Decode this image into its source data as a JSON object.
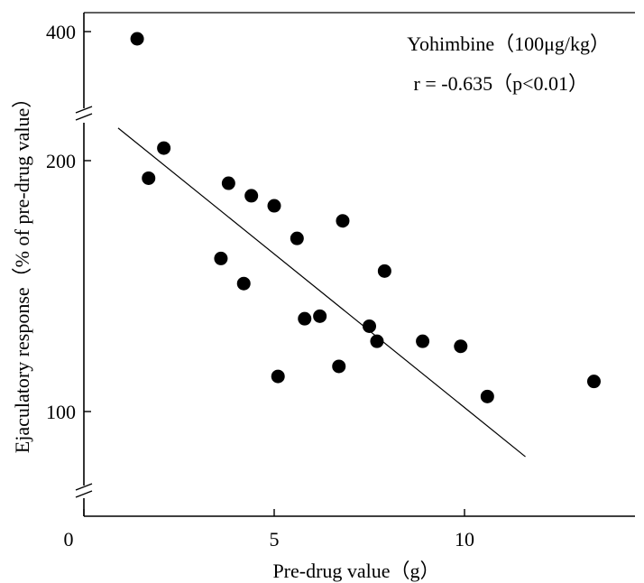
{
  "chart_data": {
    "type": "scatter",
    "xlabel": "Pre-drug value（g）",
    "ylabel": "Ejaculatory response（% of pre-drug value）",
    "annotations": [
      "Yohimbine（100μg/kg）",
      "r = -0.635（p<0.01）"
    ],
    "x_ticks": [
      0,
      5,
      10
    ],
    "x_tick_labels": [
      "0",
      "5",
      "10"
    ],
    "y_ticks": [
      100,
      200,
      400
    ],
    "y_tick_labels": [
      "100",
      "200",
      "400"
    ],
    "xlim": [
      0,
      14.5
    ],
    "y_axis_break": true,
    "grid": false,
    "points": [
      {
        "x": 1.4,
        "y": 392
      },
      {
        "x": 2.1,
        "y": 205
      },
      {
        "x": 1.7,
        "y": 193
      },
      {
        "x": 3.8,
        "y": 191
      },
      {
        "x": 4.4,
        "y": 186
      },
      {
        "x": 5.0,
        "y": 182
      },
      {
        "x": 6.8,
        "y": 176
      },
      {
        "x": 5.6,
        "y": 169
      },
      {
        "x": 3.6,
        "y": 161
      },
      {
        "x": 7.9,
        "y": 156
      },
      {
        "x": 4.2,
        "y": 151
      },
      {
        "x": 5.8,
        "y": 137
      },
      {
        "x": 6.2,
        "y": 138
      },
      {
        "x": 7.5,
        "y": 134
      },
      {
        "x": 7.7,
        "y": 128
      },
      {
        "x": 8.9,
        "y": 128
      },
      {
        "x": 9.9,
        "y": 126
      },
      {
        "x": 6.7,
        "y": 118
      },
      {
        "x": 5.1,
        "y": 114
      },
      {
        "x": 13.4,
        "y": 112
      },
      {
        "x": 10.6,
        "y": 106
      }
    ],
    "regression_line": {
      "x": [
        0.9,
        11.6
      ],
      "y": [
        213,
        82
      ]
    }
  }
}
